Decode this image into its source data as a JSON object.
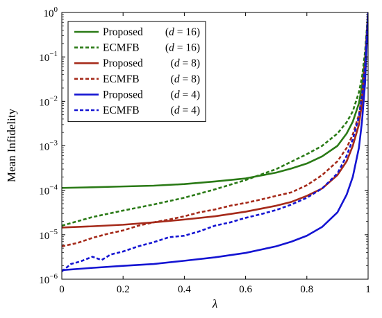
{
  "chart_data": {
    "type": "line",
    "xlabel": "λ",
    "ylabel": "Mean Infidelity",
    "xlim": [
      0,
      1
    ],
    "ylim": [
      1e-06,
      1
    ],
    "yscale": "log",
    "grid": false,
    "legend_position": "top-left",
    "x_ticks": [
      "0",
      "0.2",
      "0.4",
      "0.6",
      "0.8",
      "1"
    ],
    "y_ticks": [
      {
        "base": "10",
        "exp": "−6"
      },
      {
        "base": "10",
        "exp": "−5"
      },
      {
        "base": "10",
        "exp": "−4"
      },
      {
        "base": "10",
        "exp": "−3"
      },
      {
        "base": "10",
        "exp": "−2"
      },
      {
        "base": "10",
        "exp": "−1"
      },
      {
        "base": "10",
        "exp": "0"
      }
    ],
    "series": [
      {
        "name": "Proposed",
        "param": "(d = 16)",
        "color": "#2a7a16",
        "style": "solid",
        "x": [
          0,
          0.1,
          0.2,
          0.3,
          0.4,
          0.5,
          0.6,
          0.7,
          0.75,
          0.8,
          0.85,
          0.9,
          0.93,
          0.95,
          0.97,
          0.98,
          0.99,
          1.0
        ],
        "y": [
          0.000113,
          0.000117,
          0.000122,
          0.000127,
          0.000138,
          0.000158,
          0.000185,
          0.00025,
          0.00031,
          0.0004,
          0.00058,
          0.001,
          0.0019,
          0.0035,
          0.009,
          0.022,
          0.09,
          1.0
        ]
      },
      {
        "name": "ECMFB",
        "param": "(d = 16)",
        "color": "#2a7a16",
        "style": "dashed",
        "x": [
          0,
          0.1,
          0.2,
          0.3,
          0.4,
          0.5,
          0.6,
          0.7,
          0.8,
          0.85,
          0.9,
          0.93,
          0.95,
          0.97,
          0.98,
          0.99,
          1.0
        ],
        "y": [
          1.6e-05,
          2.5e-05,
          3.5e-05,
          4.8e-05,
          6.8e-05,
          0.000105,
          0.00017,
          0.0003,
          0.00065,
          0.001,
          0.0019,
          0.0034,
          0.006,
          0.016,
          0.035,
          0.13,
          1.0
        ]
      },
      {
        "name": "Proposed",
        "param": "(d = 8)",
        "color": "#a52a1a",
        "style": "solid",
        "x": [
          0,
          0.1,
          0.2,
          0.3,
          0.4,
          0.5,
          0.6,
          0.7,
          0.75,
          0.8,
          0.85,
          0.9,
          0.93,
          0.95,
          0.97,
          0.98,
          0.99,
          1.0
        ],
        "y": [
          1.45e-05,
          1.55e-05,
          1.68e-05,
          1.9e-05,
          2.2e-05,
          2.6e-05,
          3.3e-05,
          4.5e-05,
          5.5e-05,
          7.5e-05,
          0.00011,
          0.00022,
          0.00045,
          0.001,
          0.003,
          0.009,
          0.05,
          1.0
        ]
      },
      {
        "name": "ECMFB",
        "param": "(d = 8)",
        "color": "#a52a1a",
        "style": "dashed",
        "x": [
          0,
          0.05,
          0.1,
          0.15,
          0.2,
          0.25,
          0.3,
          0.35,
          0.4,
          0.45,
          0.5,
          0.55,
          0.6,
          0.65,
          0.7,
          0.75,
          0.8,
          0.85,
          0.9,
          0.93,
          0.95,
          0.97,
          0.98,
          0.99,
          1.0
        ],
        "y": [
          5.5e-06,
          6.5e-06,
          8.5e-06,
          1.05e-05,
          1.25e-05,
          1.6e-05,
          1.9e-05,
          2.2e-05,
          2.6e-05,
          3.2e-05,
          3.7e-05,
          4.5e-05,
          5.2e-05,
          6.2e-05,
          7.5e-05,
          9e-05,
          0.00013,
          0.00022,
          0.00045,
          0.0009,
          0.0018,
          0.005,
          0.014,
          0.07,
          1.0
        ]
      },
      {
        "name": "Proposed",
        "param": "(d = 4)",
        "color": "#1414d2",
        "style": "solid",
        "x": [
          0,
          0.1,
          0.2,
          0.3,
          0.4,
          0.5,
          0.6,
          0.7,
          0.75,
          0.8,
          0.85,
          0.9,
          0.93,
          0.95,
          0.97,
          0.98,
          0.99,
          1.0
        ],
        "y": [
          1.6e-06,
          1.8e-06,
          2e-06,
          2.2e-06,
          2.6e-06,
          3.1e-06,
          3.9e-06,
          5.5e-06,
          7e-06,
          9.5e-06,
          1.5e-05,
          3.2e-05,
          8e-05,
          0.0002,
          0.0009,
          0.0035,
          0.025,
          1.0
        ]
      },
      {
        "name": "ECMFB",
        "param": "(d = 4)",
        "color": "#1414d2",
        "style": "dashed",
        "x": [
          0,
          0.03,
          0.06,
          0.1,
          0.13,
          0.16,
          0.2,
          0.25,
          0.3,
          0.35,
          0.4,
          0.45,
          0.5,
          0.55,
          0.6,
          0.65,
          0.7,
          0.75,
          0.8,
          0.85,
          0.9,
          0.93,
          0.95,
          0.97,
          0.98,
          0.99,
          1.0
        ],
        "y": [
          1.5e-06,
          2.2e-06,
          2.5e-06,
          3.2e-06,
          2.7e-06,
          3.6e-06,
          4.2e-06,
          5.5e-06,
          6.8e-06,
          8.8e-06,
          9.5e-06,
          1.2e-05,
          1.6e-05,
          1.9e-05,
          2.4e-05,
          2.9e-05,
          3.6e-05,
          4.8e-05,
          6.8e-05,
          0.00011,
          0.00024,
          0.0006,
          0.0014,
          0.0045,
          0.013,
          0.06,
          1.0
        ]
      }
    ]
  }
}
